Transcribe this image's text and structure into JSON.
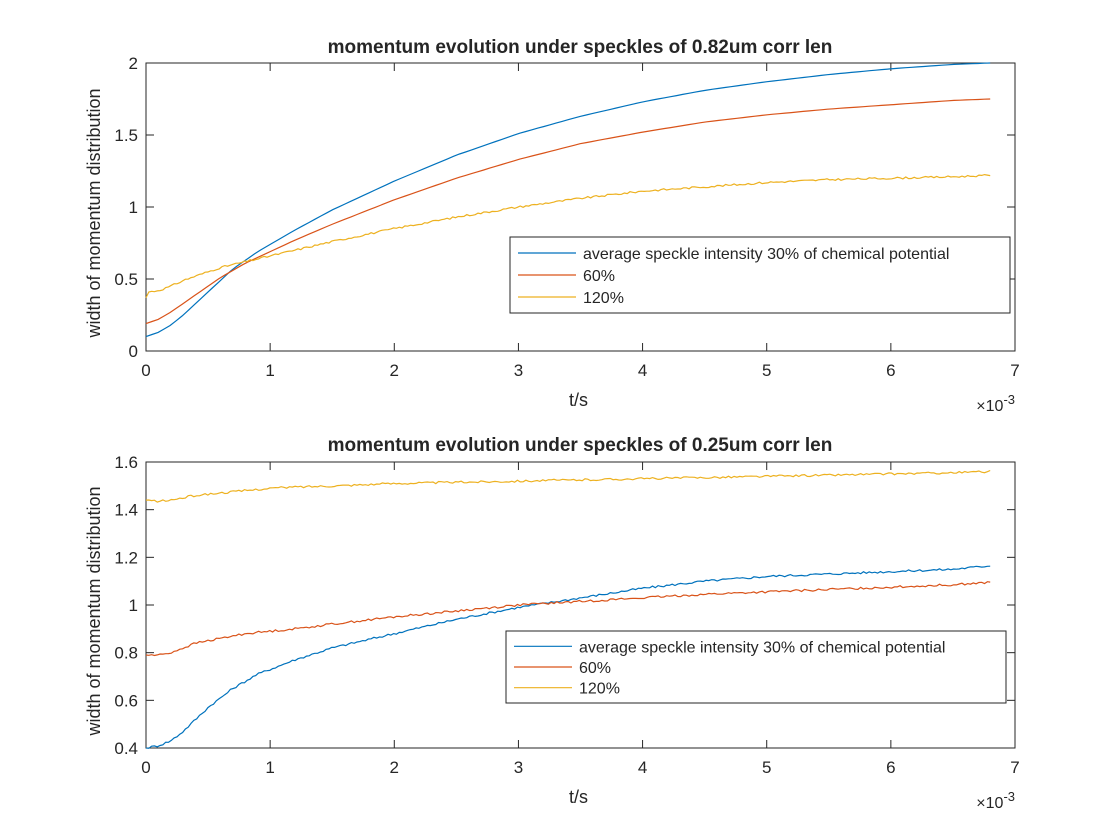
{
  "chart_data": [
    {
      "type": "line",
      "title": "momentum evolution under speckles of 0.82um corr len",
      "xlabel": "t/s",
      "ylabel": "width of momentum distribution",
      "xlim": [
        0,
        7
      ],
      "ylim": [
        0,
        2
      ],
      "x_scale_label": "×10",
      "x_scale_exponent": "-3",
      "xticks": [
        "0",
        "1",
        "2",
        "3",
        "4",
        "5",
        "6",
        "7"
      ],
      "yticks": [
        "0",
        "0.5",
        "1",
        "1.5",
        "2"
      ],
      "xtick_values": [
        0,
        1,
        2,
        3,
        4,
        5,
        6,
        7
      ],
      "ytick_values": [
        0,
        0.5,
        1,
        1.5,
        2
      ],
      "grid": false,
      "legend_position": "right-middle",
      "series": [
        {
          "name": "average speckle intensity 30% of chemical potential",
          "color": "#0072BD",
          "x": [
            0,
            0.1,
            0.2,
            0.3,
            0.4,
            0.5,
            0.6,
            0.7,
            0.8,
            0.9,
            1.0,
            1.2,
            1.5,
            2.0,
            2.5,
            3.0,
            3.5,
            4.0,
            4.5,
            5.0,
            5.5,
            6.0,
            6.5,
            6.8
          ],
          "y": [
            0.1,
            0.13,
            0.18,
            0.25,
            0.33,
            0.41,
            0.49,
            0.57,
            0.63,
            0.69,
            0.74,
            0.84,
            0.98,
            1.18,
            1.36,
            1.51,
            1.63,
            1.73,
            1.81,
            1.87,
            1.92,
            1.96,
            1.99,
            2.0
          ]
        },
        {
          "name": "60%",
          "color": "#D95319",
          "x": [
            0,
            0.1,
            0.2,
            0.3,
            0.4,
            0.5,
            0.6,
            0.7,
            0.8,
            0.9,
            1.0,
            1.2,
            1.5,
            2.0,
            2.5,
            3.0,
            3.5,
            4.0,
            4.5,
            5.0,
            5.5,
            6.0,
            6.5,
            6.8
          ],
          "y": [
            0.19,
            0.22,
            0.27,
            0.33,
            0.39,
            0.45,
            0.51,
            0.56,
            0.61,
            0.65,
            0.69,
            0.77,
            0.88,
            1.05,
            1.2,
            1.33,
            1.44,
            1.52,
            1.59,
            1.64,
            1.68,
            1.71,
            1.74,
            1.75
          ]
        },
        {
          "name": "120%",
          "color": "#EDB120",
          "x": [
            0,
            0.02,
            0.1,
            0.2,
            0.3,
            0.4,
            0.5,
            0.6,
            0.7,
            0.8,
            0.9,
            1.0,
            1.2,
            1.5,
            2.0,
            2.5,
            3.0,
            3.5,
            4.0,
            4.5,
            5.0,
            5.5,
            6.0,
            6.5,
            6.8
          ],
          "y": [
            0.37,
            0.41,
            0.42,
            0.45,
            0.49,
            0.52,
            0.55,
            0.58,
            0.6,
            0.62,
            0.64,
            0.66,
            0.7,
            0.76,
            0.85,
            0.93,
            1.0,
            1.06,
            1.11,
            1.14,
            1.17,
            1.19,
            1.2,
            1.21,
            1.22
          ]
        }
      ]
    },
    {
      "type": "line",
      "title": "momentum evolution under speckles of 0.25um corr len",
      "xlabel": "t/s",
      "ylabel": "width of momentum distribution",
      "xlim": [
        0,
        7
      ],
      "ylim": [
        0.4,
        1.6
      ],
      "x_scale_label": "×10",
      "x_scale_exponent": "-3",
      "xticks": [
        "0",
        "1",
        "2",
        "3",
        "4",
        "5",
        "6",
        "7"
      ],
      "yticks": [
        "0.4",
        "0.6",
        "0.8",
        "1",
        "1.2",
        "1.4",
        "1.6"
      ],
      "xtick_values": [
        0,
        1,
        2,
        3,
        4,
        5,
        6,
        7
      ],
      "ytick_values": [
        0.4,
        0.6,
        0.8,
        1.0,
        1.2,
        1.4,
        1.6
      ],
      "grid": false,
      "legend_position": "right-middle",
      "series": [
        {
          "name": "average speckle intensity 30% of chemical potential",
          "color": "#0072BD",
          "x": [
            0,
            0.1,
            0.2,
            0.3,
            0.4,
            0.5,
            0.6,
            0.7,
            0.8,
            0.9,
            1.0,
            1.2,
            1.5,
            2.0,
            2.5,
            3.0,
            3.5,
            4.0,
            4.5,
            5.0,
            5.5,
            6.0,
            6.5,
            6.8
          ],
          "y": [
            0.4,
            0.41,
            0.43,
            0.47,
            0.52,
            0.57,
            0.61,
            0.65,
            0.68,
            0.71,
            0.73,
            0.77,
            0.82,
            0.88,
            0.94,
            0.99,
            1.03,
            1.07,
            1.1,
            1.12,
            1.13,
            1.14,
            1.15,
            1.165
          ]
        },
        {
          "name": "60%",
          "color": "#D95319",
          "x": [
            0,
            0.1,
            0.2,
            0.3,
            0.4,
            0.5,
            0.6,
            0.7,
            0.8,
            0.9,
            1.0,
            1.2,
            1.5,
            2.0,
            2.5,
            3.0,
            3.5,
            4.0,
            4.5,
            5.0,
            5.5,
            6.0,
            6.5,
            6.8
          ],
          "y": [
            0.79,
            0.79,
            0.8,
            0.82,
            0.84,
            0.85,
            0.86,
            0.87,
            0.88,
            0.885,
            0.89,
            0.9,
            0.92,
            0.95,
            0.975,
            1.0,
            1.015,
            1.03,
            1.045,
            1.055,
            1.065,
            1.075,
            1.085,
            1.095
          ]
        },
        {
          "name": "120%",
          "color": "#EDB120",
          "x": [
            0,
            0.1,
            0.2,
            0.3,
            0.4,
            0.5,
            0.6,
            0.7,
            0.8,
            0.9,
            1.0,
            1.2,
            1.5,
            2.0,
            2.5,
            3.0,
            3.5,
            4.0,
            4.5,
            5.0,
            5.5,
            6.0,
            6.5,
            6.8
          ],
          "y": [
            1.44,
            1.435,
            1.44,
            1.45,
            1.46,
            1.465,
            1.47,
            1.475,
            1.48,
            1.485,
            1.49,
            1.495,
            1.5,
            1.51,
            1.515,
            1.52,
            1.525,
            1.53,
            1.535,
            1.54,
            1.545,
            1.55,
            1.555,
            1.56
          ]
        }
      ]
    }
  ]
}
